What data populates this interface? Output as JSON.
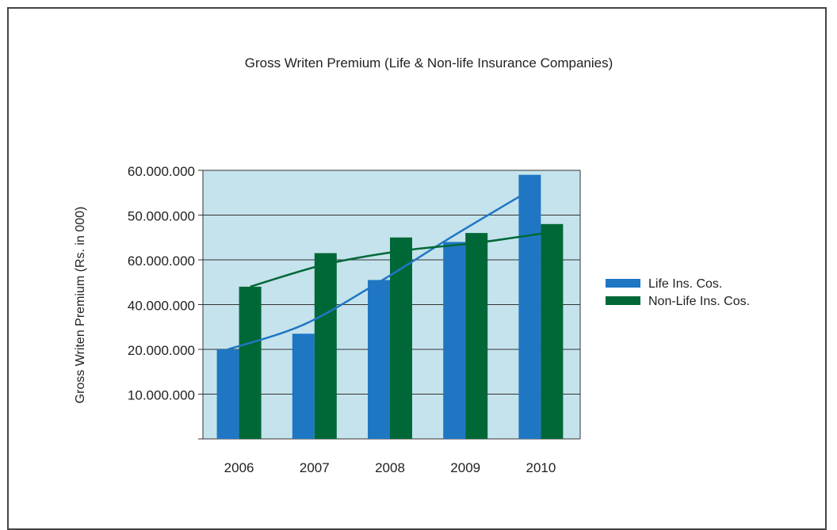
{
  "chart_data": {
    "type": "bar",
    "title": "Gross Writen Premium (Life & Non-life Insurance Companies)",
    "ylabel": "Gross Writen Premium (Rs. in 000)",
    "xlabel": "",
    "categories": [
      "2006",
      "2007",
      "2008",
      "2009",
      "2010"
    ],
    "y_tick_labels": [
      "",
      "10.000.000",
      "20.000.000",
      "40.000.000",
      "60.000.000",
      "50.000.000",
      "60.000.000"
    ],
    "ylim": [
      0,
      6
    ],
    "grid": true,
    "legend_position": "right",
    "series": [
      {
        "name": "Life Ins. Cos.",
        "color": "#1f77c4",
        "values": [
          2.0,
          2.35,
          3.55,
          4.4,
          5.9
        ]
      },
      {
        "name": "Non-Life Ins. Cos.",
        "color": "#006837",
        "values": [
          3.4,
          4.15,
          4.5,
          4.6,
          4.8
        ]
      }
    ],
    "trendlines": [
      {
        "series": "Life Ins. Cos.",
        "color": "#1f77c4",
        "values": [
          2.0,
          2.55,
          3.5,
          4.55,
          5.55
        ]
      },
      {
        "series": "Non-Life Ins. Cos.",
        "color": "#006837",
        "values": [
          3.4,
          3.9,
          4.2,
          4.38,
          4.62
        ]
      }
    ],
    "plot_background": "#c5e3ec"
  }
}
